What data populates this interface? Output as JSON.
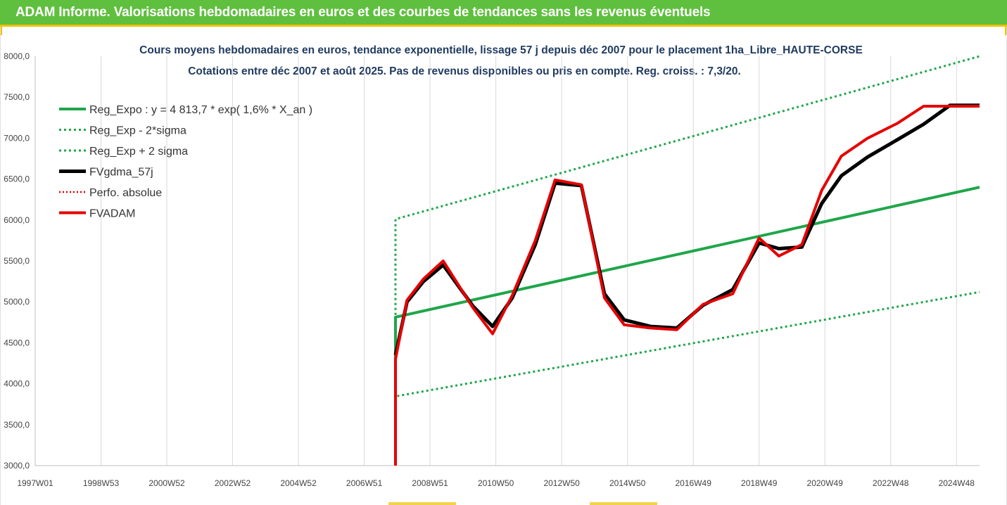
{
  "report_title": "ADAM Informe. Valorisations hebdomadaires en euros et des courbes de tendances sans les revenus éventuels",
  "chart_data": {
    "type": "line",
    "title": "Cours moyens hebdomadaires en euros, tendance exponentielle, lissage 57 j depuis déc 2007 pour le placement 1ha_Libre_HAUTE-CORSE",
    "subtitle": "Cotations entre déc 2007 et août 2025. Pas de revenus disponibles ou pris en compte. Reg. croiss. : 7,3/20.",
    "xlabel": "",
    "ylabel": "",
    "x_start": 1997.0,
    "x_end": 2025.7,
    "ylim": [
      3000,
      8000
    ],
    "y_ticks": [
      "3000,0",
      "3500,0",
      "4000,0",
      "4500,0",
      "5000,0",
      "5500,0",
      "6000,0",
      "6500,0",
      "7000,0",
      "7500,0",
      "8000,0"
    ],
    "x_tick_labels": [
      "1997W01",
      "1998W53",
      "2000W52",
      "2002W52",
      "2004W52",
      "2006W51",
      "2008W51",
      "2010W50",
      "2012W50",
      "2014W50",
      "2016W49",
      "2018W49",
      "2020W49",
      "2022W48",
      "2024W48"
    ],
    "x_tick_positions": [
      1997.0,
      1999.0,
      2001.0,
      2003.0,
      2005.0,
      2007.0,
      2009.0,
      2011.0,
      2013.0,
      2015.0,
      2017.0,
      2019.0,
      2021.0,
      2023.0,
      2025.0
    ],
    "grid": "vertical",
    "legend_position": "top-left",
    "series": [
      {
        "name": "Reg_Expo : y = 4 813,7 * exp( 1,6% *  X_an )",
        "color": "#1fa64a",
        "style": "solid",
        "width": 4,
        "x": [
          2007.95,
          2007.95,
          2025.7
        ],
        "y": [
          4300,
          4813.7,
          6400
        ]
      },
      {
        "name": "Reg_Exp - 2*sigma",
        "color": "#1fa64a",
        "style": "dotted",
        "width": 3,
        "x": [
          2008.0,
          2025.7
        ],
        "y": [
          3850,
          5120
        ]
      },
      {
        "name": "Reg_Exp + 2 sigma",
        "color": "#1fa64a",
        "style": "dotted",
        "width": 3,
        "x": [
          2007.95,
          2007.95,
          2025.7
        ],
        "y": [
          4300,
          6010,
          8000
        ]
      },
      {
        "name": "FVgdma_57j",
        "color": "#000000",
        "style": "solid",
        "width": 5,
        "x": [
          2007.95,
          2008.3,
          2008.8,
          2009.4,
          2010.3,
          2010.9,
          2011.5,
          2012.2,
          2012.8,
          2013.6,
          2014.3,
          2014.9,
          2015.7,
          2016.5,
          2017.3,
          2018.2,
          2019.0,
          2019.6,
          2020.3,
          2020.9,
          2021.5,
          2022.3,
          2023.2,
          2024.0,
          2024.8,
          2025.7
        ],
        "y": [
          4350,
          5000,
          5250,
          5450,
          4950,
          4700,
          5050,
          5700,
          6450,
          6420,
          5100,
          4780,
          4700,
          4680,
          4960,
          5150,
          5720,
          5650,
          5670,
          6200,
          6540,
          6770,
          6980,
          7170,
          7400,
          7400
        ]
      },
      {
        "name": "Perfo. absolue",
        "color": "#e50000",
        "style": "dotted",
        "width": 2.5,
        "x": [],
        "y": []
      },
      {
        "name": "FVADAM",
        "color": "#e50000",
        "style": "solid",
        "width": 4,
        "x": [
          2007.95,
          2007.95,
          2008.3,
          2008.8,
          2009.4,
          2010.3,
          2010.9,
          2011.5,
          2012.2,
          2012.8,
          2013.6,
          2014.3,
          2014.9,
          2015.7,
          2016.5,
          2017.3,
          2018.2,
          2019.0,
          2019.6,
          2020.3,
          2020.9,
          2021.5,
          2022.3,
          2023.2,
          2024.0,
          2024.8,
          2025.7
        ],
        "y": [
          3000,
          4300,
          5020,
          5280,
          5500,
          4930,
          4610,
          5080,
          5750,
          6490,
          6430,
          5050,
          4720,
          4680,
          4660,
          4970,
          5100,
          5780,
          5560,
          5700,
          6360,
          6780,
          7000,
          7180,
          7390,
          7390,
          7390
        ]
      }
    ]
  }
}
